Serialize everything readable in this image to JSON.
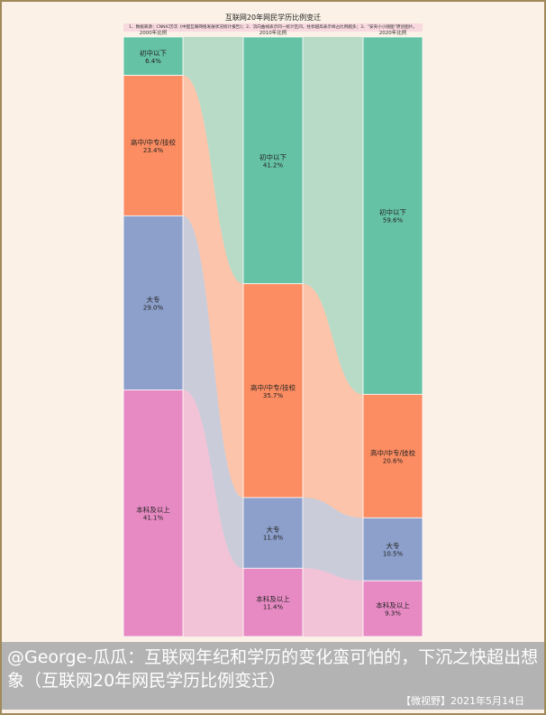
{
  "chart_data": {
    "type": "sankey",
    "title": "互联网20年网民学历比例变迁",
    "note": "1、数据来源：CNNIC历次《中国互联网络发展状况统计报告》；2、流向曲线表示同一统计区间，柱状越高表示样占比例越多；3、“安央小小随图”原创图片。",
    "columns": [
      {
        "label": "2000年比例",
        "items": [
          {
            "name": "初中以下",
            "pct": "6.4%",
            "value": 6.4
          },
          {
            "name": "高中/中专/技校",
            "pct": "23.4%",
            "value": 23.4
          },
          {
            "name": "大专",
            "pct": "29.0%",
            "value": 29.0
          },
          {
            "name": "本科及以上",
            "pct": "41.1%",
            "value": 41.1
          }
        ]
      },
      {
        "label": "2010年比例",
        "items": [
          {
            "name": "初中以下",
            "pct": "41.2%",
            "value": 41.2
          },
          {
            "name": "高中/中专/技校",
            "pct": "35.7%",
            "value": 35.7
          },
          {
            "name": "大专",
            "pct": "11.8%",
            "value": 11.8
          },
          {
            "name": "本科及以上",
            "pct": "11.4%",
            "value": 11.4
          }
        ]
      },
      {
        "label": "2020年比例",
        "items": [
          {
            "name": "初中以下",
            "pct": "59.6%",
            "value": 59.6
          },
          {
            "name": "高中/中专/技校",
            "pct": "20.6%",
            "value": 20.6
          },
          {
            "name": "大专",
            "pct": "10.5%",
            "value": 10.5
          },
          {
            "name": "本科及以上",
            "pct": "9.3%",
            "value": 9.3
          }
        ]
      }
    ],
    "colors": [
      "#66c2a5",
      "#fc8d62",
      "#8da0cb",
      "#e78ac3"
    ]
  },
  "caption": {
    "text": "@George-瓜瓜：互联网年纪和学历的变化蛮可怕的，下沉之快超出想象（互联网20年网民学历比例变迁）",
    "source": "【微视野】2021年5月14日"
  }
}
